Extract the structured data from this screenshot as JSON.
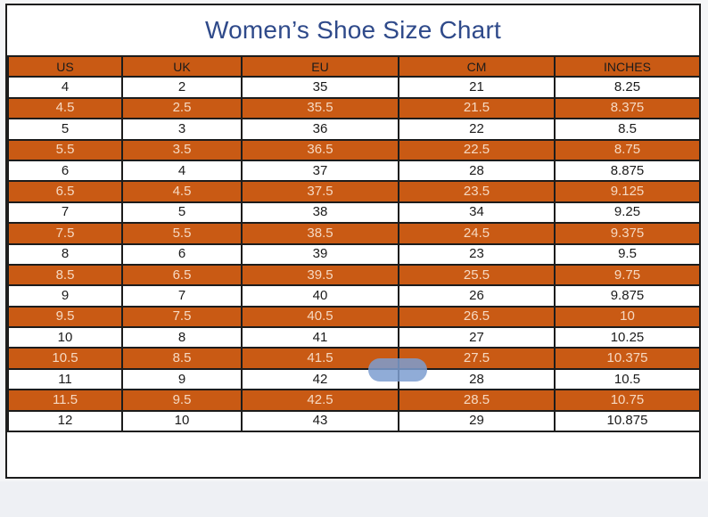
{
  "chart_data": {
    "type": "table",
    "title": "Women’s Shoe Size Chart",
    "columns": [
      "US",
      "UK",
      "EU",
      "CM",
      "INCHES"
    ],
    "rows": [
      [
        "4",
        "2",
        "35",
        "21",
        "8.25"
      ],
      [
        "4.5",
        "2.5",
        "35.5",
        "21.5",
        "8.375"
      ],
      [
        "5",
        "3",
        "36",
        "22",
        "8.5"
      ],
      [
        "5.5",
        "3.5",
        "36.5",
        "22.5",
        "8.75"
      ],
      [
        "6",
        "4",
        "37",
        "28",
        "8.875"
      ],
      [
        "6.5",
        "4.5",
        "37.5",
        "23.5",
        "9.125"
      ],
      [
        "7",
        "5",
        "38",
        "34",
        "9.25"
      ],
      [
        "7.5",
        "5.5",
        "38.5",
        "24.5",
        "9.375"
      ],
      [
        "8",
        "6",
        "39",
        "23",
        "9.5"
      ],
      [
        "8.5",
        "6.5",
        "39.5",
        "25.5",
        "9.75"
      ],
      [
        "9",
        "7",
        "40",
        "26",
        "9.875"
      ],
      [
        "9.5",
        "7.5",
        "40.5",
        "26.5",
        "10"
      ],
      [
        "10",
        "8",
        "41",
        "27",
        "10.25"
      ],
      [
        "10.5",
        "8.5",
        "41.5",
        "27.5",
        "10.375"
      ],
      [
        "11",
        "9",
        "42",
        "28",
        "10.5"
      ],
      [
        "11.5",
        "9.5",
        "42.5",
        "28.5",
        "10.75"
      ],
      [
        "12",
        "10",
        "43",
        "29",
        "10.875"
      ]
    ],
    "colors": {
      "title": "#2f4a8a",
      "band_orange": "#c95a14",
      "band_text": "#f6d9c2",
      "white_row": "#ffffff",
      "grid_line": "#1c1c1c"
    }
  }
}
